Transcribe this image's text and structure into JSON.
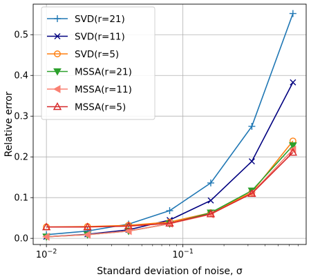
{
  "chart_data": {
    "type": "line",
    "xscale": "log",
    "xlabel": "Standard deviation of noise, σ",
    "ylabel": "Relative error",
    "xlim": [
      0.008,
      0.8
    ],
    "ylim": [
      -0.015,
      0.575
    ],
    "xticks": [
      {
        "value": 0.01,
        "base": "10",
        "exp": "−2"
      },
      {
        "value": 0.1,
        "base": "10",
        "exp": "−1"
      }
    ],
    "yticks": [
      {
        "value": 0.0,
        "label": "0.0"
      },
      {
        "value": 0.1,
        "label": "0.1"
      },
      {
        "value": 0.2,
        "label": "0.2"
      },
      {
        "value": 0.3,
        "label": "0.3"
      },
      {
        "value": 0.4,
        "label": "0.4"
      },
      {
        "value": 0.5,
        "label": "0.5"
      }
    ],
    "grid": true,
    "legend_position": "top-left",
    "x": [
      0.01,
      0.02,
      0.04,
      0.08,
      0.16,
      0.32,
      0.64
    ],
    "series": [
      {
        "name": "SVD(r=21)",
        "color": "#1f77b4",
        "marker": "plus",
        "values": [
          0.009,
          0.018,
          0.035,
          0.068,
          0.136,
          0.275,
          0.552
        ]
      },
      {
        "name": "SVD(r=11)",
        "color": "#000080",
        "marker": "x",
        "values": [
          0.004,
          0.01,
          0.021,
          0.045,
          0.093,
          0.189,
          0.383
        ]
      },
      {
        "name": "SVD(r=5)",
        "color": "#ff7f0e",
        "marker": "circle",
        "values": [
          0.028,
          0.029,
          0.032,
          0.04,
          0.063,
          0.113,
          0.239
        ]
      },
      {
        "name": "MSSA(r=21)",
        "color": "#2ca02c",
        "marker": "triangle-down",
        "values": [
          0.004,
          0.009,
          0.018,
          0.036,
          0.063,
          0.117,
          0.228
        ]
      },
      {
        "name": "MSSA(r=11)",
        "color": "#fa8072",
        "marker": "triangle-left",
        "values": [
          0.004,
          0.009,
          0.018,
          0.036,
          0.059,
          0.111,
          0.218
        ]
      },
      {
        "name": "MSSA(r=5)",
        "color": "#d62728",
        "marker": "triangle-up",
        "values": [
          0.028,
          0.028,
          0.03,
          0.037,
          0.06,
          0.11,
          0.211
        ]
      }
    ]
  }
}
